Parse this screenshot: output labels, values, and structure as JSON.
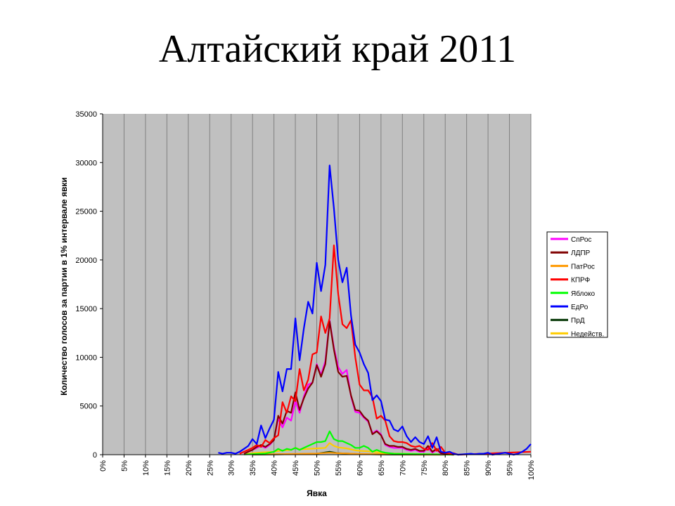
{
  "slide": {
    "title": "Алтайский край 2011"
  },
  "chart_data": {
    "type": "line",
    "xlabel": "Явка",
    "ylabel": "Количество голосов за партии в 1% интервале явки",
    "xlim": [
      0,
      100
    ],
    "ylim": [
      0,
      35000
    ],
    "x_ticks": [
      "0%",
      "5%",
      "10%",
      "15%",
      "20%",
      "25%",
      "30%",
      "35%",
      "40%",
      "45%",
      "50%",
      "55%",
      "60%",
      "65%",
      "70%",
      "75%",
      "80%",
      "85%",
      "90%",
      "95%",
      "100%"
    ],
    "y_ticks": [
      "0",
      "5000",
      "10000",
      "15000",
      "20000",
      "25000",
      "30000",
      "35000"
    ],
    "grid": true,
    "legend_position": "right",
    "plot_background": "#c0c0c0",
    "series": [
      {
        "name": "СпРос",
        "color": "#ff00ff",
        "points": [
          [
            33,
            100
          ],
          [
            34,
            300
          ],
          [
            35,
            500
          ],
          [
            36,
            700
          ],
          [
            37,
            900
          ],
          [
            38,
            700
          ],
          [
            39,
            1000
          ],
          [
            40,
            1500
          ],
          [
            41,
            3700
          ],
          [
            42,
            2800
          ],
          [
            43,
            3800
          ],
          [
            44,
            3500
          ],
          [
            45,
            5500
          ],
          [
            46,
            4300
          ],
          [
            47,
            6000
          ],
          [
            48,
            7200
          ],
          [
            49,
            7400
          ],
          [
            50,
            9300
          ],
          [
            51,
            8200
          ],
          [
            52,
            9600
          ],
          [
            53,
            13800
          ],
          [
            54,
            11000
          ],
          [
            55,
            9000
          ],
          [
            56,
            8300
          ],
          [
            57,
            8700
          ],
          [
            58,
            6000
          ],
          [
            59,
            4400
          ],
          [
            60,
            4300
          ],
          [
            61,
            3800
          ],
          [
            62,
            3400
          ],
          [
            63,
            2200
          ],
          [
            64,
            2500
          ],
          [
            65,
            2100
          ],
          [
            66,
            1000
          ],
          [
            67,
            800
          ],
          [
            68,
            700
          ],
          [
            69,
            700
          ],
          [
            70,
            700
          ],
          [
            71,
            500
          ],
          [
            72,
            400
          ],
          [
            73,
            500
          ],
          [
            74,
            300
          ],
          [
            75,
            300
          ],
          [
            76,
            700
          ],
          [
            77,
            200
          ],
          [
            78,
            500
          ],
          [
            79,
            100
          ],
          [
            80,
            50
          ],
          [
            81,
            100
          ],
          [
            82,
            0
          ]
        ]
      },
      {
        "name": "ЛДПР",
        "color": "#800000",
        "points": [
          [
            33,
            100
          ],
          [
            34,
            300
          ],
          [
            35,
            500
          ],
          [
            36,
            800
          ],
          [
            37,
            1000
          ],
          [
            38,
            800
          ],
          [
            39,
            1100
          ],
          [
            40,
            1500
          ],
          [
            41,
            4000
          ],
          [
            42,
            3200
          ],
          [
            43,
            4500
          ],
          [
            44,
            4300
          ],
          [
            45,
            6400
          ],
          [
            46,
            4600
          ],
          [
            47,
            5800
          ],
          [
            48,
            6800
          ],
          [
            49,
            7400
          ],
          [
            50,
            9200
          ],
          [
            51,
            8000
          ],
          [
            52,
            9300
          ],
          [
            53,
            13700
          ],
          [
            54,
            10800
          ],
          [
            55,
            8500
          ],
          [
            56,
            8000
          ],
          [
            57,
            8100
          ],
          [
            58,
            6100
          ],
          [
            59,
            4600
          ],
          [
            60,
            4500
          ],
          [
            61,
            3900
          ],
          [
            62,
            3500
          ],
          [
            63,
            2100
          ],
          [
            64,
            2400
          ],
          [
            65,
            2000
          ],
          [
            66,
            1100
          ],
          [
            67,
            900
          ],
          [
            68,
            900
          ],
          [
            69,
            800
          ],
          [
            70,
            800
          ],
          [
            71,
            600
          ],
          [
            72,
            500
          ],
          [
            73,
            600
          ],
          [
            74,
            400
          ],
          [
            75,
            400
          ],
          [
            76,
            900
          ],
          [
            77,
            300
          ],
          [
            78,
            600
          ],
          [
            79,
            150
          ],
          [
            80,
            100
          ],
          [
            81,
            100
          ],
          [
            82,
            0
          ]
        ]
      },
      {
        "name": "ПатРос",
        "color": "#ff9900",
        "points": [
          [
            35,
            30
          ],
          [
            40,
            50
          ],
          [
            45,
            80
          ],
          [
            50,
            120
          ],
          [
            53,
            200
          ],
          [
            55,
            150
          ],
          [
            60,
            80
          ],
          [
            65,
            50
          ],
          [
            70,
            30
          ],
          [
            80,
            10
          ],
          [
            82,
            0
          ]
        ]
      },
      {
        "name": "КПРФ",
        "color": "#ff0000",
        "points": [
          [
            32,
            100
          ],
          [
            33,
            300
          ],
          [
            34,
            500
          ],
          [
            35,
            700
          ],
          [
            36,
            1000
          ],
          [
            37,
            800
          ],
          [
            38,
            1500
          ],
          [
            39,
            1200
          ],
          [
            40,
            1700
          ],
          [
            41,
            2000
          ],
          [
            42,
            5400
          ],
          [
            43,
            4300
          ],
          [
            44,
            6000
          ],
          [
            45,
            5500
          ],
          [
            46,
            8800
          ],
          [
            47,
            6600
          ],
          [
            48,
            7700
          ],
          [
            49,
            10300
          ],
          [
            50,
            10500
          ],
          [
            51,
            14200
          ],
          [
            52,
            12500
          ],
          [
            53,
            14000
          ],
          [
            54,
            21500
          ],
          [
            55,
            16500
          ],
          [
            56,
            13400
          ],
          [
            57,
            13000
          ],
          [
            58,
            13800
          ],
          [
            59,
            10000
          ],
          [
            60,
            7200
          ],
          [
            61,
            6600
          ],
          [
            62,
            6600
          ],
          [
            63,
            5900
          ],
          [
            64,
            3700
          ],
          [
            65,
            4000
          ],
          [
            66,
            3500
          ],
          [
            67,
            1900
          ],
          [
            68,
            1400
          ],
          [
            69,
            1300
          ],
          [
            70,
            1300
          ],
          [
            71,
            1200
          ],
          [
            72,
            900
          ],
          [
            73,
            800
          ],
          [
            74,
            900
          ],
          [
            75,
            600
          ],
          [
            76,
            500
          ],
          [
            77,
            1200
          ],
          [
            78,
            400
          ],
          [
            79,
            800
          ],
          [
            80,
            200
          ],
          [
            81,
            100
          ],
          [
            82,
            150
          ],
          [
            83,
            0
          ],
          [
            100,
            300
          ]
        ]
      },
      {
        "name": "Яблоко",
        "color": "#00ff00",
        "points": [
          [
            33,
            20
          ],
          [
            35,
            60
          ],
          [
            38,
            120
          ],
          [
            40,
            300
          ],
          [
            41,
            600
          ],
          [
            42,
            400
          ],
          [
            43,
            600
          ],
          [
            44,
            500
          ],
          [
            45,
            700
          ],
          [
            46,
            500
          ],
          [
            47,
            700
          ],
          [
            48,
            900
          ],
          [
            49,
            1100
          ],
          [
            50,
            1300
          ],
          [
            51,
            1300
          ],
          [
            52,
            1400
          ],
          [
            53,
            2400
          ],
          [
            54,
            1600
          ],
          [
            55,
            1400
          ],
          [
            56,
            1400
          ],
          [
            57,
            1200
          ],
          [
            58,
            1000
          ],
          [
            59,
            700
          ],
          [
            60,
            700
          ],
          [
            61,
            900
          ],
          [
            62,
            700
          ],
          [
            63,
            300
          ],
          [
            64,
            500
          ],
          [
            65,
            300
          ],
          [
            66,
            200
          ],
          [
            68,
            100
          ],
          [
            70,
            80
          ],
          [
            75,
            50
          ],
          [
            80,
            20
          ],
          [
            82,
            0
          ]
        ]
      },
      {
        "name": "ЕдРо",
        "color": "#0000ff",
        "points": [
          [
            27,
            200
          ],
          [
            28,
            100
          ],
          [
            29,
            200
          ],
          [
            30,
            200
          ],
          [
            31,
            100
          ],
          [
            32,
            300
          ],
          [
            33,
            600
          ],
          [
            34,
            900
          ],
          [
            35,
            1600
          ],
          [
            36,
            1100
          ],
          [
            37,
            3000
          ],
          [
            38,
            1700
          ],
          [
            39,
            2700
          ],
          [
            40,
            3600
          ],
          [
            41,
            8500
          ],
          [
            42,
            6500
          ],
          [
            43,
            8800
          ],
          [
            44,
            8800
          ],
          [
            45,
            14000
          ],
          [
            46,
            9700
          ],
          [
            47,
            13000
          ],
          [
            48,
            15700
          ],
          [
            49,
            14500
          ],
          [
            50,
            19700
          ],
          [
            51,
            16800
          ],
          [
            52,
            19500
          ],
          [
            53,
            29700
          ],
          [
            54,
            25300
          ],
          [
            55,
            20000
          ],
          [
            56,
            17700
          ],
          [
            57,
            19200
          ],
          [
            58,
            14300
          ],
          [
            59,
            11300
          ],
          [
            60,
            10500
          ],
          [
            61,
            9300
          ],
          [
            62,
            8400
          ],
          [
            63,
            5600
          ],
          [
            64,
            6100
          ],
          [
            65,
            5500
          ],
          [
            66,
            3600
          ],
          [
            67,
            3500
          ],
          [
            68,
            2600
          ],
          [
            69,
            2400
          ],
          [
            70,
            2900
          ],
          [
            71,
            1900
          ],
          [
            72,
            1300
          ],
          [
            73,
            1800
          ],
          [
            74,
            1300
          ],
          [
            75,
            1100
          ],
          [
            76,
            1900
          ],
          [
            77,
            700
          ],
          [
            78,
            1800
          ],
          [
            79,
            300
          ],
          [
            80,
            200
          ],
          [
            81,
            300
          ],
          [
            82,
            100
          ],
          [
            83,
            0
          ],
          [
            86,
            100
          ],
          [
            87,
            50
          ],
          [
            88,
            100
          ],
          [
            89,
            100
          ],
          [
            90,
            200
          ],
          [
            91,
            0
          ],
          [
            94,
            200
          ],
          [
            95,
            100
          ],
          [
            96,
            0
          ],
          [
            97,
            100
          ],
          [
            98,
            300
          ],
          [
            99,
            600
          ],
          [
            100,
            1100
          ]
        ]
      },
      {
        "name": "ПрД",
        "color": "#003300",
        "points": [
          [
            35,
            10
          ],
          [
            40,
            30
          ],
          [
            45,
            60
          ],
          [
            50,
            100
          ],
          [
            53,
            300
          ],
          [
            55,
            150
          ],
          [
            60,
            60
          ],
          [
            65,
            30
          ],
          [
            70,
            10
          ],
          [
            80,
            0
          ]
        ]
      },
      {
        "name": "Недейств.",
        "color": "#ffcc00",
        "points": [
          [
            33,
            50
          ],
          [
            35,
            150
          ],
          [
            38,
            250
          ],
          [
            40,
            300
          ],
          [
            42,
            450
          ],
          [
            44,
            500
          ],
          [
            45,
            700
          ],
          [
            46,
            550
          ],
          [
            48,
            600
          ],
          [
            50,
            650
          ],
          [
            52,
            700
          ],
          [
            53,
            1200
          ],
          [
            54,
            900
          ],
          [
            55,
            750
          ],
          [
            57,
            650
          ],
          [
            59,
            450
          ],
          [
            60,
            400
          ],
          [
            62,
            350
          ],
          [
            64,
            250
          ],
          [
            66,
            150
          ],
          [
            68,
            120
          ],
          [
            70,
            100
          ],
          [
            75,
            60
          ],
          [
            80,
            30
          ],
          [
            82,
            0
          ]
        ]
      }
    ]
  }
}
